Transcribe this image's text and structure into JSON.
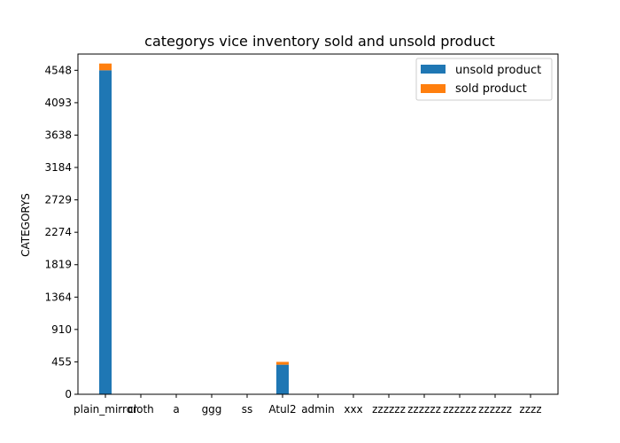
{
  "chart_data": {
    "type": "bar",
    "stacked": true,
    "title": "categorys vice inventory sold and unsold product",
    "xlabel": "",
    "ylabel": "CATEGORYS",
    "categories": [
      "plain_mirror",
      "cloth",
      "a",
      "ggg",
      "ss",
      "Atul2",
      "admin",
      "xxx",
      "zzzzzz",
      "zzzzzz",
      "zzzzzz",
      "zzzzzz",
      "zzzz"
    ],
    "series": [
      {
        "name": "unsold product",
        "color": "#1f77b4",
        "values": [
          4548,
          0,
          0,
          0,
          0,
          415,
          0,
          0,
          0,
          0,
          0,
          0,
          0
        ]
      },
      {
        "name": "sold product",
        "color": "#ff7f0e",
        "values": [
          95,
          0,
          0,
          0,
          0,
          40,
          0,
          0,
          0,
          0,
          0,
          0,
          0
        ]
      }
    ],
    "yticks": [
      0,
      455,
      910,
      1364,
      1819,
      2274,
      2729,
      3184,
      3638,
      4093,
      4548
    ],
    "ylim": [
      0,
      4776
    ],
    "legend_position": "top-right",
    "grid": false
  }
}
